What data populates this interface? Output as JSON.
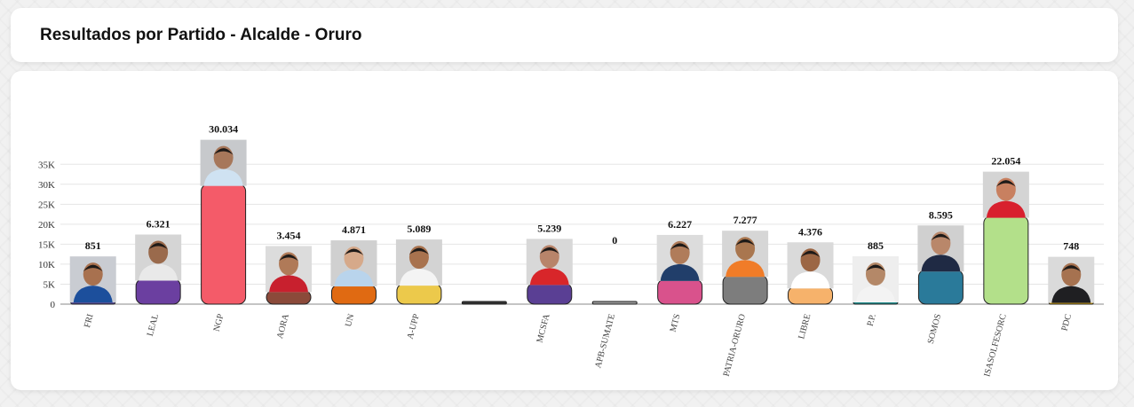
{
  "header": {
    "title": "Resultados por Partido - Alcalde - Oruro"
  },
  "chart_data": {
    "type": "bar",
    "title": "Resultados por Partido - Alcalde - Oruro",
    "xlabel": "",
    "ylabel": "",
    "ylim": [
      0,
      37500
    ],
    "y_ticks": [
      "0",
      "5K",
      "10K",
      "15K",
      "20K",
      "25K",
      "30K",
      "35K"
    ],
    "y_tick_values": [
      0,
      5000,
      10000,
      15000,
      20000,
      25000,
      30000,
      35000
    ],
    "grid": true,
    "categories": [
      "FRI",
      "LEAL",
      "NGP",
      "AORA",
      "UN",
      "A-UPP",
      "",
      "MCSFA",
      "APB-SUMATE",
      "MTS",
      "PATRIA-ORURO",
      "LIBRE",
      "P.P.",
      "SOMOS",
      "ISASOLFESORC",
      "PDC"
    ],
    "values": [
      851,
      6321,
      30034,
      3454,
      4871,
      5089,
      0,
      5239,
      0,
      6227,
      7277,
      4376,
      885,
      8595,
      22054,
      748
    ],
    "value_labels": [
      "851",
      "6.321",
      "30.034",
      "3.454",
      "4.871",
      "5.089",
      "",
      "5.239",
      "0",
      "6.227",
      "7.277",
      "4.376",
      "885",
      "8.595",
      "22.054",
      "748"
    ],
    "colors": [
      "#4b3f8c",
      "#6b3fa0",
      "#f45b69",
      "#8b4a3a",
      "#e06a12",
      "#ecc94b",
      "#333333",
      "#5a3f94",
      "#999999",
      "#d9528c",
      "#7d7d7d",
      "#f6b26b",
      "#1f8a8a",
      "#2a7a9a",
      "#b3e08a",
      "#e0a800"
    ],
    "has_photo": [
      true,
      true,
      true,
      true,
      true,
      true,
      false,
      true,
      false,
      true,
      true,
      true,
      true,
      true,
      true,
      true
    ],
    "placeholder_avatar": [
      false,
      false,
      false,
      false,
      false,
      false,
      false,
      false,
      true,
      false,
      false,
      false,
      false,
      false,
      false,
      false
    ],
    "photo_colors": [
      {
        "bg": "#c9ccd2",
        "skin": "#a8714f",
        "cloth": "#1c4f9c"
      },
      {
        "bg": "#d5d5d5",
        "skin": "#9a6a4c",
        "cloth": "#e9e9e9"
      },
      {
        "bg": "#c7c9cc",
        "skin": "#a7775a",
        "cloth": "#cfe2f2"
      },
      {
        "bg": "#dcdcdc",
        "skin": "#b07a58",
        "cloth": "#c8202e"
      },
      {
        "bg": "#d0d0d0",
        "skin": "#d6a98a",
        "cloth": "#b9d4ec"
      },
      {
        "bg": "#d3d3d3",
        "skin": "#a8724e",
        "cloth": "#f4f4f4"
      },
      {
        "bg": "#ffffff",
        "skin": "#ffffff",
        "cloth": "#ffffff"
      },
      {
        "bg": "#d8d8d8",
        "skin": "#b8846a",
        "cloth": "#d8262a"
      },
      {
        "bg": "#ffffff",
        "skin": "#6b7280",
        "cloth": "#6b7280"
      },
      {
        "bg": "#dcdcdc",
        "skin": "#b07c5a",
        "cloth": "#213e6a"
      },
      {
        "bg": "#d6d6d6",
        "skin": "#a9764f",
        "cloth": "#f07c28"
      },
      {
        "bg": "#dadada",
        "skin": "#9c6644",
        "cloth": "#ffffff"
      },
      {
        "bg": "#eeeeee",
        "skin": "#b48868",
        "cloth": "#f3f3f3"
      },
      {
        "bg": "#d0d0d0",
        "skin": "#b9876a",
        "cloth": "#1f2a44"
      },
      {
        "bg": "#d4d4d4",
        "skin": "#c88060",
        "cloth": "#d8202e"
      },
      {
        "bg": "#dadada",
        "skin": "#a67250",
        "cloth": "#1f1f22"
      }
    ]
  }
}
